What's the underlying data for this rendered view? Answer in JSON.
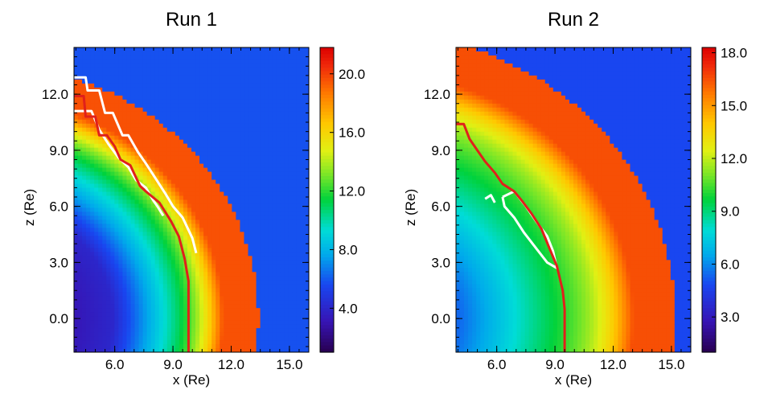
{
  "chart_data": [
    {
      "type": "heatmap",
      "title": "Run 1",
      "xlabel": "x (Re)",
      "ylabel": "z (Re)",
      "xlim": [
        3.9,
        16.0
      ],
      "ylim": [
        -1.8,
        14.5
      ],
      "xticks": [
        6.0,
        9.0,
        12.0,
        15.0
      ],
      "xtick_labels": [
        "6.0",
        "9.0",
        "12.0",
        "15.0"
      ],
      "yticks": [
        0.0,
        3.0,
        6.0,
        9.0,
        12.0
      ],
      "ytick_labels": [
        "0.0",
        "3.0",
        "6.0",
        "9.0",
        "12.0"
      ],
      "colorbar": {
        "range": [
          1.0,
          21.8
        ],
        "ticks": [
          4.0,
          8.0,
          12.0,
          16.0,
          20.0
        ],
        "tick_labels": [
          "4.0",
          "8.0",
          "12.0",
          "16.0",
          "20.0"
        ],
        "colormap": "rainbow"
      },
      "field": {
        "background_value": 5.8,
        "inner_core_value": 1.5,
        "core_radius": 5.9,
        "peak_value": 19.6,
        "peak_radius": 12.2,
        "peak_width": 1.5,
        "outer_edge_radius": 13.4
      },
      "contours": {
        "red": {
          "color": "#e0201b",
          "points": [
            [
              3.9,
              11.9
            ],
            [
              4.4,
              11.9
            ],
            [
              4.5,
              10.8
            ],
            [
              5.0,
              10.8
            ],
            [
              5.2,
              9.8
            ],
            [
              5.6,
              9.8
            ],
            [
              6.0,
              9.2
            ],
            [
              6.3,
              8.5
            ],
            [
              6.8,
              8.2
            ],
            [
              7.3,
              7.1
            ],
            [
              7.6,
              6.8
            ],
            [
              8.3,
              6.2
            ],
            [
              8.9,
              5.2
            ],
            [
              9.3,
              4.4
            ],
            [
              9.6,
              3.2
            ],
            [
              9.8,
              2.0
            ],
            [
              9.8,
              -1.8
            ]
          ]
        },
        "white": [
          {
            "color": "#ffffff",
            "points": [
              [
                3.9,
                12.9
              ],
              [
                4.5,
                12.9
              ],
              [
                4.6,
                12.2
              ],
              [
                5.2,
                12.2
              ],
              [
                5.5,
                11.0
              ],
              [
                5.9,
                11.0
              ],
              [
                6.4,
                9.8
              ],
              [
                6.7,
                9.8
              ],
              [
                7.2,
                8.9
              ],
              [
                7.6,
                8.3
              ],
              [
                8.1,
                7.5
              ],
              [
                8.6,
                6.7
              ],
              [
                9.0,
                6.0
              ],
              [
                9.5,
                5.4
              ],
              [
                10.0,
                4.3
              ],
              [
                10.2,
                3.5
              ]
            ]
          },
          {
            "color": "#ffffff",
            "points": [
              [
                3.9,
                11.1
              ],
              [
                4.8,
                11.1
              ],
              [
                5.2,
                10.1
              ],
              [
                5.7,
                9.3
              ],
              [
                6.2,
                8.6
              ],
              [
                6.7,
                8.1
              ],
              [
                7.1,
                7.4
              ],
              [
                7.6,
                7.0
              ],
              [
                8.0,
                6.3
              ],
              [
                8.2,
                6.0
              ],
              [
                8.5,
                5.5
              ]
            ]
          }
        ]
      }
    },
    {
      "type": "heatmap",
      "title": "Run 2",
      "xlabel": "x (Re)",
      "ylabel": "z (Re)",
      "xlim": [
        3.9,
        16.0
      ],
      "ylim": [
        -1.8,
        14.5
      ],
      "xticks": [
        6.0,
        9.0,
        12.0,
        15.0
      ],
      "xtick_labels": [
        "6.0",
        "9.0",
        "12.0",
        "15.0"
      ],
      "yticks": [
        0.0,
        3.0,
        6.0,
        9.0,
        12.0
      ],
      "ytick_labels": [
        "0.0",
        "3.0",
        "6.0",
        "9.0",
        "12.0"
      ],
      "colorbar": {
        "range": [
          1.0,
          18.3
        ],
        "ticks": [
          3.0,
          6.0,
          9.0,
          12.0,
          15.0,
          18.0
        ],
        "tick_labels": [
          "3.0",
          "6.0",
          "9.0",
          "12.0",
          "15.0",
          "18.0"
        ],
        "colormap": "rainbow"
      },
      "field": {
        "background_value": 4.8,
        "inner_core_value": 3.0,
        "core_radius": 4.2,
        "peak_value": 16.5,
        "peak_radius": 14.0,
        "peak_width": 2.0,
        "outer_edge_radius": 15.2
      },
      "contours": {
        "red": {
          "color": "#e0201b",
          "points": [
            [
              3.9,
              10.4
            ],
            [
              4.3,
              10.4
            ],
            [
              4.6,
              9.6
            ],
            [
              5.0,
              9.0
            ],
            [
              5.4,
              8.4
            ],
            [
              5.9,
              7.8
            ],
            [
              6.3,
              7.2
            ],
            [
              6.9,
              6.8
            ],
            [
              7.3,
              6.3
            ],
            [
              7.8,
              5.6
            ],
            [
              8.3,
              4.8
            ],
            [
              8.7,
              3.8
            ],
            [
              9.1,
              2.8
            ],
            [
              9.4,
              1.5
            ],
            [
              9.5,
              0.5
            ],
            [
              9.5,
              -1.8
            ]
          ]
        },
        "white": [
          {
            "color": "#ffffff",
            "points": [
              [
                6.3,
                6.5
              ],
              [
                6.9,
                6.8
              ],
              [
                7.5,
                6.0
              ],
              [
                8.1,
                5.1
              ],
              [
                8.6,
                4.4
              ],
              [
                8.9,
                3.6
              ],
              [
                9.1,
                2.7
              ],
              [
                8.6,
                3.0
              ],
              [
                8.0,
                3.8
              ],
              [
                7.4,
                4.6
              ],
              [
                6.9,
                5.4
              ],
              [
                6.4,
                6.0
              ],
              [
                6.3,
                6.5
              ]
            ]
          },
          {
            "color": "#ffffff",
            "points": [
              [
                5.4,
                6.4
              ],
              [
                5.7,
                6.6
              ],
              [
                5.9,
                6.2
              ]
            ]
          }
        ]
      }
    }
  ]
}
